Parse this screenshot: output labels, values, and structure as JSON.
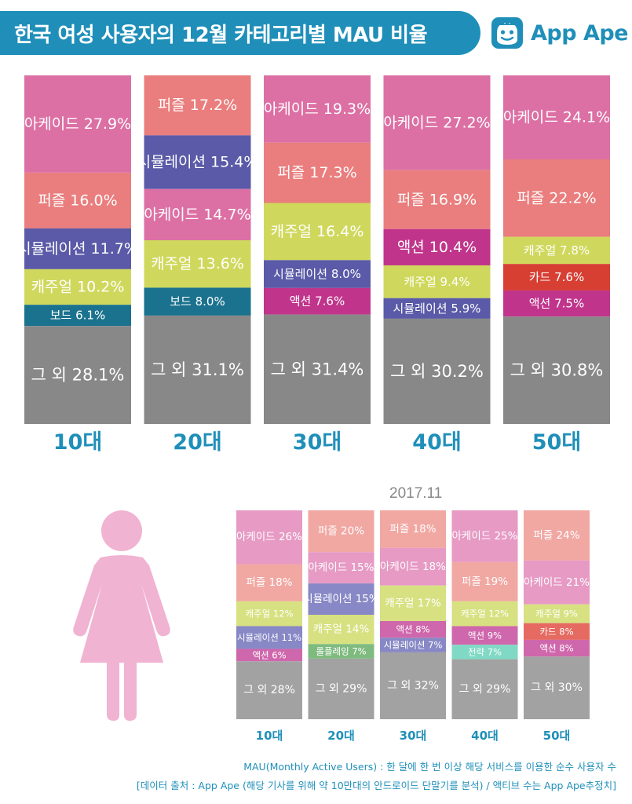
{
  "header": {
    "title": "한국 여성 사용자의 12월 카테고리별 MAU 비율"
  },
  "logo": {
    "text": "App Ape"
  },
  "colors": {
    "아케이드": "#dc70a4",
    "퍼즐": "#ea7d7d",
    "시뮬레이션": "#5a5aa8",
    "캐주얼": "#cfd85c",
    "보드": "#1b728e",
    "액션": "#c0358b",
    "카드": "#d73f33",
    "그 외": "#888888",
    "롤플레잉": "#5aa05a",
    "전략": "#5cc4ae",
    "age": "#1f8fb9"
  },
  "colors_light": {
    "아케이드": "#e69ac4",
    "퍼즐": "#f1a7a2",
    "시뮬레이션": "#8888c6",
    "캐주얼": "#d7e181",
    "액션": "#cf67ac",
    "카드": "#e56a61",
    "그 외": "#a2a2a2",
    "롤플레잉": "#7fbb7f",
    "전략": "#7fd9c4"
  },
  "chart_data": [
    {
      "type": "bar",
      "stacked": true,
      "title": "2017.12",
      "categories": [
        "10대",
        "20대",
        "30대",
        "40대",
        "50대"
      ],
      "columns": [
        {
          "age": "10대",
          "segments": [
            {
              "label": "아케이드",
              "value": 27.9
            },
            {
              "label": "퍼즐",
              "value": 16.0
            },
            {
              "label": "시뮬레이션",
              "value": 11.7
            },
            {
              "label": "캐주얼",
              "value": 10.2
            },
            {
              "label": "보드",
              "value": 6.1
            },
            {
              "label": "그 외",
              "value": 28.1
            }
          ]
        },
        {
          "age": "20대",
          "segments": [
            {
              "label": "퍼즐",
              "value": 17.2
            },
            {
              "label": "시뮬레이션",
              "value": 15.4
            },
            {
              "label": "아케이드",
              "value": 14.7
            },
            {
              "label": "캐주얼",
              "value": 13.6
            },
            {
              "label": "보드",
              "value": 8.0
            },
            {
              "label": "그 외",
              "value": 31.1
            }
          ]
        },
        {
          "age": "30대",
          "segments": [
            {
              "label": "아케이드",
              "value": 19.3
            },
            {
              "label": "퍼즐",
              "value": 17.3
            },
            {
              "label": "캐주얼",
              "value": 16.4
            },
            {
              "label": "시뮬레이션",
              "value": 8.0
            },
            {
              "label": "액션",
              "value": 7.6
            },
            {
              "label": "그 외",
              "value": 31.4
            }
          ]
        },
        {
          "age": "40대",
          "segments": [
            {
              "label": "아케이드",
              "value": 27.2
            },
            {
              "label": "퍼즐",
              "value": 16.9
            },
            {
              "label": "액션",
              "value": 10.4
            },
            {
              "label": "캐주얼",
              "value": 9.4
            },
            {
              "label": "시뮬레이션",
              "value": 5.9
            },
            {
              "label": "그 외",
              "value": 30.2
            }
          ]
        },
        {
          "age": "50대",
          "segments": [
            {
              "label": "아케이드",
              "value": 24.1
            },
            {
              "label": "퍼즐",
              "value": 22.2
            },
            {
              "label": "캐주얼",
              "value": 7.8
            },
            {
              "label": "카드",
              "value": 7.6
            },
            {
              "label": "액션",
              "value": 7.5
            },
            {
              "label": "그 외",
              "value": 30.8
            }
          ]
        }
      ]
    },
    {
      "type": "bar",
      "stacked": true,
      "title": "2017.11",
      "categories": [
        "10대",
        "20대",
        "30대",
        "40대",
        "50대"
      ],
      "columns": [
        {
          "age": "10대",
          "segments": [
            {
              "label": "아케이드",
              "value": 26
            },
            {
              "label": "퍼즐",
              "value": 18
            },
            {
              "label": "캐주얼",
              "value": 12
            },
            {
              "label": "시뮬레이션",
              "value": 11
            },
            {
              "label": "액션",
              "value": 6
            },
            {
              "label": "그 외",
              "value": 28
            }
          ]
        },
        {
          "age": "20대",
          "segments": [
            {
              "label": "퍼즐",
              "value": 20
            },
            {
              "label": "아케이드",
              "value": 15
            },
            {
              "label": "시뮬레이션",
              "value": 15
            },
            {
              "label": "캐주얼",
              "value": 14
            },
            {
              "label": "롤플레잉",
              "value": 7
            },
            {
              "label": "그 외",
              "value": 29
            }
          ]
        },
        {
          "age": "30대",
          "segments": [
            {
              "label": "퍼즐",
              "value": 18
            },
            {
              "label": "아케이드",
              "value": 18
            },
            {
              "label": "캐주얼",
              "value": 17
            },
            {
              "label": "액션",
              "value": 8
            },
            {
              "label": "시뮬레이션",
              "value": 7
            },
            {
              "label": "그 외",
              "value": 32
            }
          ]
        },
        {
          "age": "40대",
          "segments": [
            {
              "label": "아케이드",
              "value": 25
            },
            {
              "label": "퍼즐",
              "value": 19
            },
            {
              "label": "캐주얼",
              "value": 12
            },
            {
              "label": "액션",
              "value": 9
            },
            {
              "label": "전략",
              "value": 7
            },
            {
              "label": "그 외",
              "value": 29
            }
          ]
        },
        {
          "age": "50대",
          "segments": [
            {
              "label": "퍼즐",
              "value": 24
            },
            {
              "label": "아케이드",
              "value": 21
            },
            {
              "label": "캐주얼",
              "value": 9
            },
            {
              "label": "카드",
              "value": 8
            },
            {
              "label": "액션",
              "value": 8
            },
            {
              "label": "그 외",
              "value": 30
            }
          ]
        }
      ]
    }
  ],
  "footnotes": {
    "mau": "MAU(Monthly Active Users) : 한 달에 한 번 이상 해당 서비스를 이용한 순수 사용자 수",
    "source": "[데이터 출처 : App Ape (해당 기사를 위해 약 10만대의 안드로이드 단말기를 분석) / 액티브 수는 App Ape추정치]"
  }
}
